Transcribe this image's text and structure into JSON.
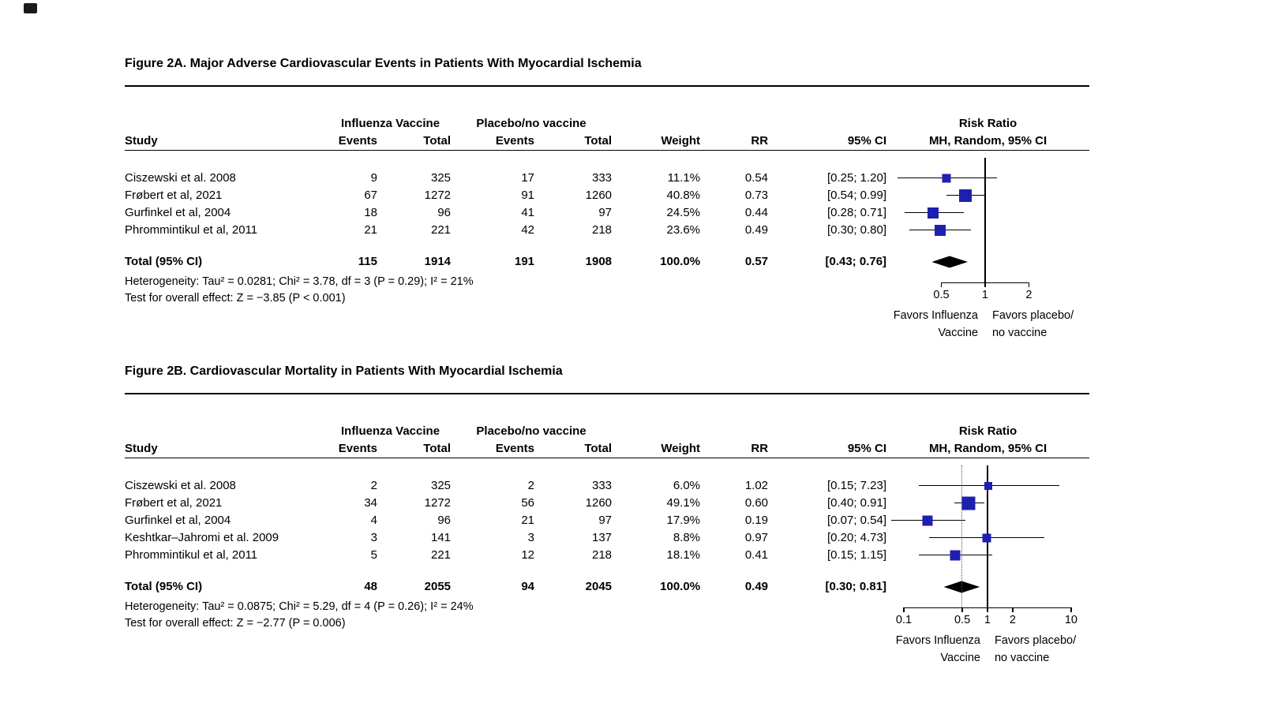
{
  "colors": {
    "square": "#1f1faf",
    "diamond": "#000000",
    "line": "#000000",
    "background": "#ffffff"
  },
  "chart_data": [
    {
      "type": "forest",
      "title": "Figure 2A. Major Adverse Cardiovascular Events in Patients With Myocardial Ischemia",
      "group_headers": {
        "treatment": "Influenza Vaccine",
        "control": "Placebo/no vaccine",
        "plot_title": "Risk Ratio"
      },
      "column_headers": {
        "study": "Study",
        "events": "Events",
        "total": "Total",
        "weight": "Weight",
        "rr": "RR",
        "ci": "95% CI",
        "plot_sub": "MH, Random, 95% CI"
      },
      "studies": [
        {
          "study": "Ciszewski et al. 2008",
          "events1": "9",
          "total1": "325",
          "events2": "17",
          "total2": "333",
          "weight": "11.1%",
          "rr_label": "0.54",
          "ci_label": "[0.25; 1.20]",
          "rr": 0.54,
          "ci_low": 0.25,
          "ci_high": 1.2,
          "weight_pct": 11.1
        },
        {
          "study": "Frøbert et al, 2021",
          "events1": "67",
          "total1": "1272",
          "events2": "91",
          "total2": "1260",
          "weight": "40.8%",
          "rr_label": "0.73",
          "ci_label": "[0.54; 0.99]",
          "rr": 0.73,
          "ci_low": 0.54,
          "ci_high": 0.99,
          "weight_pct": 40.8
        },
        {
          "study": "Gurfinkel et al, 2004",
          "events1": "18",
          "total1": "96",
          "events2": "41",
          "total2": "97",
          "weight": "24.5%",
          "rr_label": "0.44",
          "ci_label": "[0.28; 0.71]",
          "rr": 0.44,
          "ci_low": 0.28,
          "ci_high": 0.71,
          "weight_pct": 24.5
        },
        {
          "study": "Phrommintikul et al, 2011",
          "events1": "21",
          "total1": "221",
          "events2": "42",
          "total2": "218",
          "weight": "23.6%",
          "rr_label": "0.49",
          "ci_label": "[0.30; 0.80]",
          "rr": 0.49,
          "ci_low": 0.3,
          "ci_high": 0.8,
          "weight_pct": 23.6
        }
      ],
      "total": {
        "label": "Total (95% CI)",
        "events1": "115",
        "total1": "1914",
        "events2": "191",
        "total2": "1908",
        "weight": "100.0%",
        "rr_label": "0.57",
        "ci_label": "[0.43; 0.76]",
        "rr": 0.57,
        "ci_low": 0.43,
        "ci_high": 0.76
      },
      "heterogeneity": "Heterogeneity: Tau² = 0.0281; Chi² = 3.78, df = 3 (P = 0.29); I² = 21%",
      "overall_effect": "Test for overall effect: Z = −3.85 (P < 0.001)",
      "axis": {
        "scale": "log",
        "min": 0.21,
        "max": 5.2,
        "ticks": [
          0.5,
          1,
          2
        ],
        "tick_labels": [
          "0.5",
          "1",
          "2"
        ],
        "axis_span": [
          0.5,
          2
        ],
        "ref_line": 1,
        "pooled_line": null
      },
      "favors_left": [
        "Favors Influenza",
        "Vaccine"
      ],
      "favors_right": [
        "Favors placebo/",
        "no vaccine"
      ]
    },
    {
      "type": "forest",
      "title": "Figure 2B. Cardiovascular Mortality in Patients With Myocardial Ischemia",
      "group_headers": {
        "treatment": "Influenza Vaccine",
        "control": "Placebo/no vaccine",
        "plot_title": "Risk Ratio"
      },
      "column_headers": {
        "study": "Study",
        "events": "Events",
        "total": "Total",
        "weight": "Weight",
        "rr": "RR",
        "ci": "95% CI",
        "plot_sub": "MH, Random, 95% CI"
      },
      "studies": [
        {
          "study": "Ciszewski et al. 2008",
          "events1": "2",
          "total1": "325",
          "events2": "2",
          "total2": "333",
          "weight": "6.0%",
          "rr_label": "1.02",
          "ci_label": "[0.15; 7.23]",
          "rr": 1.02,
          "ci_low": 0.15,
          "ci_high": 7.23,
          "weight_pct": 6.0
        },
        {
          "study": "Frøbert et al, 2021",
          "events1": "34",
          "total1": "1272",
          "events2": "56",
          "total2": "1260",
          "weight": "49.1%",
          "rr_label": "0.60",
          "ci_label": "[0.40; 0.91]",
          "rr": 0.6,
          "ci_low": 0.4,
          "ci_high": 0.91,
          "weight_pct": 49.1
        },
        {
          "study": "Gurfinkel et al, 2004",
          "events1": "4",
          "total1": "96",
          "events2": "21",
          "total2": "97",
          "weight": "17.9%",
          "rr_label": "0.19",
          "ci_label": "[0.07; 0.54]",
          "rr": 0.19,
          "ci_low": 0.07,
          "ci_high": 0.54,
          "weight_pct": 17.9
        },
        {
          "study": "Keshtkar–Jahromi et al. 2009",
          "events1": "3",
          "total1": "141",
          "events2": "3",
          "total2": "137",
          "weight": "8.8%",
          "rr_label": "0.97",
          "ci_label": "[0.20; 4.73]",
          "rr": 0.97,
          "ci_low": 0.2,
          "ci_high": 4.73,
          "weight_pct": 8.8
        },
        {
          "study": "Phrommintikul et al, 2011",
          "events1": "5",
          "total1": "221",
          "events2": "12",
          "total2": "218",
          "weight": "18.1%",
          "rr_label": "0.41",
          "ci_label": "[0.15; 1.15]",
          "rr": 0.41,
          "ci_low": 0.15,
          "ci_high": 1.15,
          "weight_pct": 18.1
        }
      ],
      "total": {
        "label": "Total (95% CI)",
        "events1": "48",
        "total1": "2055",
        "events2": "94",
        "total2": "2045",
        "weight": "100.0%",
        "rr_label": "0.49",
        "ci_label": "[0.30; 0.81]",
        "rr": 0.49,
        "ci_low": 0.3,
        "ci_high": 0.81
      },
      "heterogeneity": "Heterogeneity: Tau² = 0.0875; Chi² = 5.29, df = 4 (P = 0.26); I² = 24%",
      "overall_effect": "Test for overall effect: Z = −2.77 (P = 0.006)",
      "axis": {
        "scale": "log",
        "min": 0.062,
        "max": 16.5,
        "ticks": [
          0.1,
          0.5,
          1,
          2,
          10
        ],
        "tick_labels": [
          "0.1",
          "0.5",
          "1",
          "2",
          "10"
        ],
        "axis_span": [
          0.1,
          10
        ],
        "ref_line": 1,
        "pooled_line": 0.49
      },
      "favors_left": [
        "Favors Influenza",
        "Vaccine"
      ],
      "favors_right": [
        "Favors placebo/",
        "no vaccine"
      ]
    }
  ]
}
